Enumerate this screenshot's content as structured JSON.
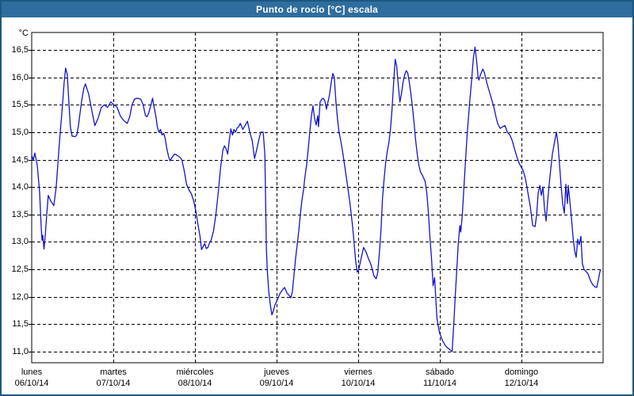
{
  "window": {
    "title": "Punto de rocío [°C] escala"
  },
  "colors": {
    "titlebar_bg": "#2e6d9e",
    "titlebar_text": "#ffffff",
    "frame_border": "#1d5880",
    "plot_border": "#000000",
    "grid": "#000000",
    "series_line": "#1414cc",
    "background": "#ffffff",
    "label_text": "#000000"
  },
  "chart_data": {
    "type": "line",
    "title": "Punto de rocío [°C] escala",
    "ylabel": "°C",
    "xlabel": "",
    "grid": "dashed",
    "legend": "none",
    "ylim": [
      11.0,
      16.5
    ],
    "y_tick_step": 0.5,
    "y_ticks": [
      "16,5",
      "16,0",
      "15,5",
      "15,0",
      "14,5",
      "14,0",
      "13,5",
      "13,0",
      "12,5",
      "12,0",
      "11,5",
      "11,0"
    ],
    "x_days": [
      {
        "name": "lunes",
        "date": "06/10/14"
      },
      {
        "name": "martes",
        "date": "07/10/14"
      },
      {
        "name": "miércoles",
        "date": "08/10/14"
      },
      {
        "name": "jueves",
        "date": "09/10/14"
      },
      {
        "name": "viernes",
        "date": "10/10/14"
      },
      {
        "name": "sábado",
        "date": "11/10/14"
      },
      {
        "name": "domingo",
        "date": "12/10/14"
      }
    ],
    "x_range_days": 7,
    "series": [
      {
        "name": "Punto de rocío",
        "units": "°C",
        "x_units": "days since lunes 06/10/14 00:00",
        "points": [
          [
            0,
            14.58
          ],
          [
            0.019,
            14.49
          ],
          [
            0.039,
            14.62
          ],
          [
            0.068,
            14.4
          ],
          [
            0.097,
            13.9
          ],
          [
            0.116,
            13.3
          ],
          [
            0.126,
            13.03
          ],
          [
            0.136,
            13.12
          ],
          [
            0.15,
            12.87
          ],
          [
            0.165,
            13.1
          ],
          [
            0.184,
            13.5
          ],
          [
            0.203,
            13.85
          ],
          [
            0.232,
            13.75
          ],
          [
            0.271,
            13.66
          ],
          [
            0.3,
            14.0
          ],
          [
            0.339,
            14.8
          ],
          [
            0.378,
            15.5
          ],
          [
            0.397,
            15.9
          ],
          [
            0.416,
            16.17
          ],
          [
            0.436,
            16.05
          ],
          [
            0.455,
            15.55
          ],
          [
            0.474,
            15.1
          ],
          [
            0.494,
            14.93
          ],
          [
            0.532,
            14.92
          ],
          [
            0.552,
            14.95
          ],
          [
            0.571,
            15.1
          ],
          [
            0.61,
            15.55
          ],
          [
            0.639,
            15.8
          ],
          [
            0.658,
            15.88
          ],
          [
            0.697,
            15.7
          ],
          [
            0.736,
            15.4
          ],
          [
            0.774,
            15.12
          ],
          [
            0.813,
            15.25
          ],
          [
            0.852,
            15.45
          ],
          [
            0.891,
            15.5
          ],
          [
            0.929,
            15.45
          ],
          [
            0.968,
            15.55
          ],
          [
            1.007,
            15.5
          ],
          [
            1.045,
            15.46
          ],
          [
            1.084,
            15.3
          ],
          [
            1.123,
            15.22
          ],
          [
            1.152,
            15.18
          ],
          [
            1.171,
            15.16
          ],
          [
            1.2,
            15.28
          ],
          [
            1.229,
            15.5
          ],
          [
            1.258,
            15.6
          ],
          [
            1.297,
            15.62
          ],
          [
            1.336,
            15.6
          ],
          [
            1.365,
            15.5
          ],
          [
            1.394,
            15.3
          ],
          [
            1.413,
            15.28
          ],
          [
            1.433,
            15.35
          ],
          [
            1.462,
            15.5
          ],
          [
            1.481,
            15.62
          ],
          [
            1.5,
            15.45
          ],
          [
            1.52,
            15.3
          ],
          [
            1.539,
            15.1
          ],
          [
            1.558,
            15.0
          ],
          [
            1.578,
            15.05
          ],
          [
            1.597,
            14.95
          ],
          [
            1.617,
            14.98
          ],
          [
            1.636,
            14.88
          ],
          [
            1.655,
            14.7
          ],
          [
            1.675,
            14.57
          ],
          [
            1.694,
            14.48
          ],
          [
            1.723,
            14.55
          ],
          [
            1.752,
            14.6
          ],
          [
            1.781,
            14.58
          ],
          [
            1.81,
            14.55
          ],
          [
            1.839,
            14.5
          ],
          [
            1.868,
            14.3
          ],
          [
            1.897,
            14.05
          ],
          [
            1.926,
            13.95
          ],
          [
            1.955,
            13.88
          ],
          [
            1.984,
            13.75
          ],
          [
            2.013,
            13.55
          ],
          [
            2.033,
            13.35
          ],
          [
            2.062,
            13.1
          ],
          [
            2.081,
            12.86
          ],
          [
            2.101,
            12.92
          ],
          [
            2.12,
            12.97
          ],
          [
            2.139,
            12.88
          ],
          [
            2.159,
            12.9
          ],
          [
            2.178,
            12.98
          ],
          [
            2.198,
            13.03
          ],
          [
            2.227,
            13.2
          ],
          [
            2.256,
            13.5
          ],
          [
            2.285,
            13.9
          ],
          [
            2.314,
            14.35
          ],
          [
            2.343,
            14.68
          ],
          [
            2.362,
            14.75
          ],
          [
            2.381,
            14.7
          ],
          [
            2.401,
            14.6
          ],
          [
            2.42,
            14.85
          ],
          [
            2.44,
            15.06
          ],
          [
            2.459,
            14.95
          ],
          [
            2.478,
            15.05
          ],
          [
            2.497,
            15.0
          ],
          [
            2.517,
            15.08
          ],
          [
            2.536,
            15.1
          ],
          [
            2.556,
            15.16
          ],
          [
            2.585,
            15.05
          ],
          [
            2.614,
            15.12
          ],
          [
            2.643,
            15.2
          ],
          [
            2.672,
            15.0
          ],
          [
            2.701,
            14.85
          ],
          [
            2.73,
            14.52
          ],
          [
            2.759,
            14.7
          ],
          [
            2.788,
            14.9
          ],
          [
            2.807,
            15.0
          ],
          [
            2.836,
            15.0
          ],
          [
            2.856,
            14.6
          ],
          [
            2.865,
            13.8
          ],
          [
            2.875,
            12.9
          ],
          [
            2.885,
            12.5
          ],
          [
            2.904,
            12.1
          ],
          [
            2.923,
            11.85
          ],
          [
            2.943,
            11.67
          ],
          [
            2.962,
            11.75
          ],
          [
            2.981,
            11.85
          ],
          [
            3.01,
            11.95
          ],
          [
            3.039,
            12.05
          ],
          [
            3.068,
            12.12
          ],
          [
            3.098,
            12.17
          ],
          [
            3.127,
            12.07
          ],
          [
            3.156,
            12.02
          ],
          [
            3.175,
            11.98
          ],
          [
            3.194,
            12.1
          ],
          [
            3.214,
            12.4
          ],
          [
            3.233,
            12.7
          ],
          [
            3.252,
            12.95
          ],
          [
            3.272,
            13.2
          ],
          [
            3.291,
            13.5
          ],
          [
            3.31,
            13.75
          ],
          [
            3.33,
            13.95
          ],
          [
            3.349,
            14.2
          ],
          [
            3.368,
            14.4
          ],
          [
            3.388,
            14.7
          ],
          [
            3.407,
            15.0
          ],
          [
            3.427,
            15.3
          ],
          [
            3.446,
            15.48
          ],
          [
            3.465,
            15.25
          ],
          [
            3.485,
            15.13
          ],
          [
            3.504,
            15.3
          ],
          [
            3.514,
            15.1
          ],
          [
            3.533,
            15.55
          ],
          [
            3.553,
            15.6
          ],
          [
            3.572,
            15.62
          ],
          [
            3.591,
            15.57
          ],
          [
            3.611,
            15.42
          ],
          [
            3.63,
            15.55
          ],
          [
            3.649,
            15.68
          ],
          [
            3.669,
            15.9
          ],
          [
            3.688,
            16.07
          ],
          [
            3.707,
            16.0
          ],
          [
            3.727,
            15.55
          ],
          [
            3.746,
            15.25
          ],
          [
            3.765,
            15.0
          ],
          [
            3.785,
            14.85
          ],
          [
            3.814,
            14.6
          ],
          [
            3.843,
            14.3
          ],
          [
            3.872,
            14.0
          ],
          [
            3.901,
            13.68
          ],
          [
            3.93,
            13.3
          ],
          [
            3.949,
            13.0
          ],
          [
            3.969,
            12.65
          ],
          [
            3.988,
            12.45
          ],
          [
            4.007,
            12.5
          ],
          [
            4.036,
            12.7
          ],
          [
            4.066,
            12.9
          ],
          [
            4.095,
            12.82
          ],
          [
            4.124,
            12.7
          ],
          [
            4.153,
            12.6
          ],
          [
            4.172,
            12.5
          ],
          [
            4.192,
            12.38
          ],
          [
            4.221,
            12.33
          ],
          [
            4.24,
            12.45
          ],
          [
            4.259,
            12.8
          ],
          [
            4.279,
            13.2
          ],
          [
            4.298,
            13.8
          ],
          [
            4.317,
            14.15
          ],
          [
            4.337,
            14.45
          ],
          [
            4.356,
            14.65
          ],
          [
            4.375,
            14.8
          ],
          [
            4.395,
            15.05
          ],
          [
            4.414,
            15.4
          ],
          [
            4.434,
            15.9
          ],
          [
            4.453,
            16.33
          ],
          [
            4.472,
            16.2
          ],
          [
            4.491,
            15.85
          ],
          [
            4.511,
            15.55
          ],
          [
            4.53,
            15.7
          ],
          [
            4.549,
            15.9
          ],
          [
            4.569,
            16.05
          ],
          [
            4.588,
            16.12
          ],
          [
            4.607,
            16.08
          ],
          [
            4.627,
            15.9
          ],
          [
            4.646,
            15.7
          ],
          [
            4.665,
            15.45
          ],
          [
            4.685,
            15.15
          ],
          [
            4.704,
            14.85
          ],
          [
            4.723,
            14.6
          ],
          [
            4.743,
            14.4
          ],
          [
            4.762,
            14.28
          ],
          [
            4.791,
            14.2
          ],
          [
            4.82,
            14.1
          ],
          [
            4.84,
            13.9
          ],
          [
            4.859,
            13.55
          ],
          [
            4.878,
            13.1
          ],
          [
            4.898,
            12.7
          ],
          [
            4.917,
            12.2
          ],
          [
            4.936,
            12.35
          ],
          [
            4.946,
            12.1
          ],
          [
            4.965,
            11.6
          ],
          [
            4.995,
            11.35
          ],
          [
            5.033,
            11.2
          ],
          [
            5.072,
            11.1
          ],
          [
            5.111,
            11.05
          ],
          [
            5.15,
            11.0
          ],
          [
            5.169,
            11.45
          ],
          [
            5.188,
            12.0
          ],
          [
            5.208,
            12.5
          ],
          [
            5.227,
            13.0
          ],
          [
            5.246,
            13.3
          ],
          [
            5.256,
            13.18
          ],
          [
            5.276,
            13.5
          ],
          [
            5.295,
            14.0
          ],
          [
            5.314,
            14.45
          ],
          [
            5.334,
            14.95
          ],
          [
            5.363,
            15.5
          ],
          [
            5.392,
            16.0
          ],
          [
            5.411,
            16.35
          ],
          [
            5.431,
            16.55
          ],
          [
            5.45,
            16.3
          ],
          [
            5.469,
            16.0
          ],
          [
            5.479,
            15.95
          ],
          [
            5.498,
            16.05
          ],
          [
            5.527,
            16.15
          ],
          [
            5.547,
            16.08
          ],
          [
            5.576,
            15.9
          ],
          [
            5.605,
            15.75
          ],
          [
            5.634,
            15.6
          ],
          [
            5.663,
            15.45
          ],
          [
            5.692,
            15.25
          ],
          [
            5.711,
            15.15
          ],
          [
            5.74,
            15.07
          ],
          [
            5.769,
            15.1
          ],
          [
            5.798,
            15.12
          ],
          [
            5.828,
            15.0
          ],
          [
            5.857,
            14.95
          ],
          [
            5.886,
            14.85
          ],
          [
            5.915,
            14.7
          ],
          [
            5.944,
            14.55
          ],
          [
            5.973,
            14.43
          ],
          [
            6.002,
            14.35
          ],
          [
            6.021,
            14.3
          ],
          [
            6.05,
            14.15
          ],
          [
            6.079,
            13.9
          ],
          [
            6.108,
            13.65
          ],
          [
            6.138,
            13.3
          ],
          [
            6.167,
            13.28
          ],
          [
            6.186,
            13.5
          ],
          [
            6.205,
            13.9
          ],
          [
            6.225,
            14.03
          ],
          [
            6.244,
            13.85
          ],
          [
            6.263,
            14.0
          ],
          [
            6.283,
            13.6
          ],
          [
            6.302,
            13.38
          ],
          [
            6.321,
            13.75
          ],
          [
            6.35,
            14.2
          ],
          [
            6.379,
            14.6
          ],
          [
            6.409,
            14.85
          ],
          [
            6.428,
            15.0
          ],
          [
            6.447,
            14.8
          ],
          [
            6.467,
            14.4
          ],
          [
            6.486,
            14.0
          ],
          [
            6.505,
            13.7
          ],
          [
            6.525,
            13.52
          ],
          [
            6.544,
            14.05
          ],
          [
            6.563,
            13.7
          ],
          [
            6.573,
            14.03
          ],
          [
            6.592,
            13.75
          ],
          [
            6.612,
            13.45
          ],
          [
            6.631,
            13.1
          ],
          [
            6.65,
            12.85
          ],
          [
            6.67,
            12.72
          ],
          [
            6.689,
            13.05
          ],
          [
            6.708,
            12.95
          ],
          [
            6.728,
            13.1
          ],
          [
            6.747,
            12.6
          ],
          [
            6.766,
            12.5
          ],
          [
            6.786,
            12.47
          ],
          [
            6.815,
            12.42
          ],
          [
            6.844,
            12.3
          ],
          [
            6.873,
            12.22
          ],
          [
            6.902,
            12.18
          ],
          [
            6.921,
            12.17
          ],
          [
            6.941,
            12.3
          ],
          [
            6.96,
            12.45
          ],
          [
            6.97,
            12.5
          ]
        ]
      }
    ]
  }
}
